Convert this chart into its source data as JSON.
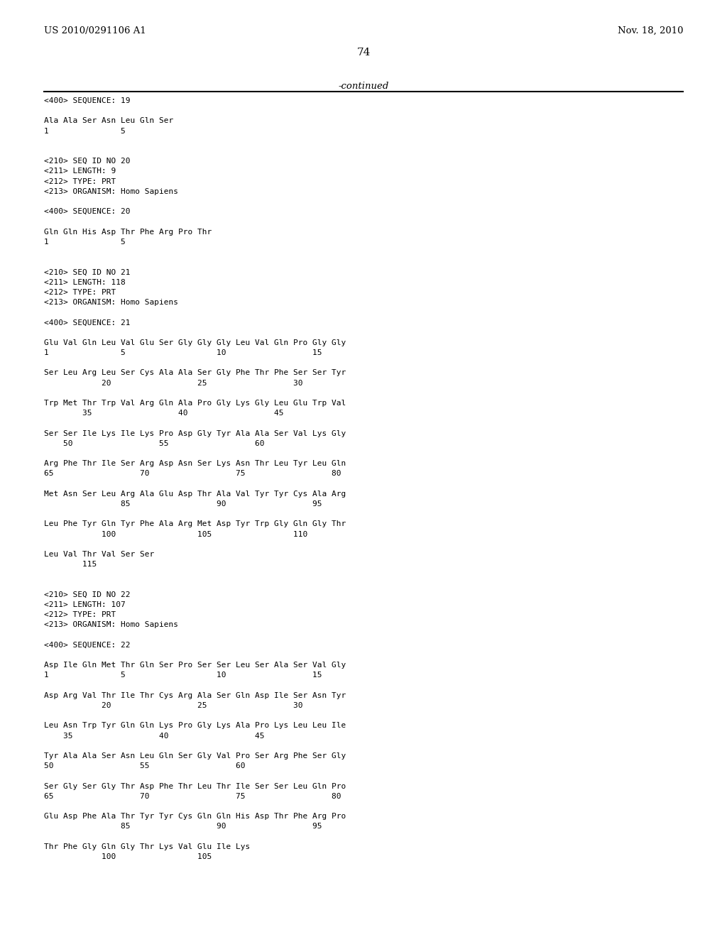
{
  "header_left": "US 2010/0291106 A1",
  "header_right": "Nov. 18, 2010",
  "page_number": "74",
  "continued_text": "-continued",
  "background_color": "#ffffff",
  "text_color": "#000000",
  "lines": [
    "<400> SEQUENCE: 19",
    "",
    "Ala Ala Ser Asn Leu Gln Ser",
    "1               5",
    "",
    "",
    "<210> SEQ ID NO 20",
    "<211> LENGTH: 9",
    "<212> TYPE: PRT",
    "<213> ORGANISM: Homo Sapiens",
    "",
    "<400> SEQUENCE: 20",
    "",
    "Gln Gln His Asp Thr Phe Arg Pro Thr",
    "1               5",
    "",
    "",
    "<210> SEQ ID NO 21",
    "<211> LENGTH: 118",
    "<212> TYPE: PRT",
    "<213> ORGANISM: Homo Sapiens",
    "",
    "<400> SEQUENCE: 21",
    "",
    "Glu Val Gln Leu Val Glu Ser Gly Gly Gly Leu Val Gln Pro Gly Gly",
    "1               5                   10                  15",
    "",
    "Ser Leu Arg Leu Ser Cys Ala Ala Ser Gly Phe Thr Phe Ser Ser Tyr",
    "            20                  25                  30",
    "",
    "Trp Met Thr Trp Val Arg Gln Ala Pro Gly Lys Gly Leu Glu Trp Val",
    "        35                  40                  45",
    "",
    "Ser Ser Ile Lys Ile Lys Pro Asp Gly Tyr Ala Ala Ser Val Lys Gly",
    "    50                  55                  60",
    "",
    "Arg Phe Thr Ile Ser Arg Asp Asn Ser Lys Asn Thr Leu Tyr Leu Gln",
    "65                  70                  75                  80",
    "",
    "Met Asn Ser Leu Arg Ala Glu Asp Thr Ala Val Tyr Tyr Cys Ala Arg",
    "                85                  90                  95",
    "",
    "Leu Phe Tyr Gln Tyr Phe Ala Arg Met Asp Tyr Trp Gly Gln Gly Thr",
    "            100                 105                 110",
    "",
    "Leu Val Thr Val Ser Ser",
    "        115",
    "",
    "",
    "<210> SEQ ID NO 22",
    "<211> LENGTH: 107",
    "<212> TYPE: PRT",
    "<213> ORGANISM: Homo Sapiens",
    "",
    "<400> SEQUENCE: 22",
    "",
    "Asp Ile Gln Met Thr Gln Ser Pro Ser Ser Leu Ser Ala Ser Val Gly",
    "1               5                   10                  15",
    "",
    "Asp Arg Val Thr Ile Thr Cys Arg Ala Ser Gln Asp Ile Ser Asn Tyr",
    "            20                  25                  30",
    "",
    "Leu Asn Trp Tyr Gln Gln Lys Pro Gly Lys Ala Pro Lys Leu Leu Ile",
    "    35                  40                  45",
    "",
    "Tyr Ala Ala Ser Asn Leu Gln Ser Gly Val Pro Ser Arg Phe Ser Gly",
    "50                  55                  60",
    "",
    "Ser Gly Ser Gly Thr Asp Phe Thr Leu Thr Ile Ser Ser Leu Gln Pro",
    "65                  70                  75                  80",
    "",
    "Glu Asp Phe Ala Thr Tyr Tyr Cys Gln Gln His Asp Thr Phe Arg Pro",
    "                85                  90                  95",
    "",
    "Thr Phe Gly Gln Gly Thr Lys Val Glu Ile Lys",
    "            100                 105"
  ]
}
